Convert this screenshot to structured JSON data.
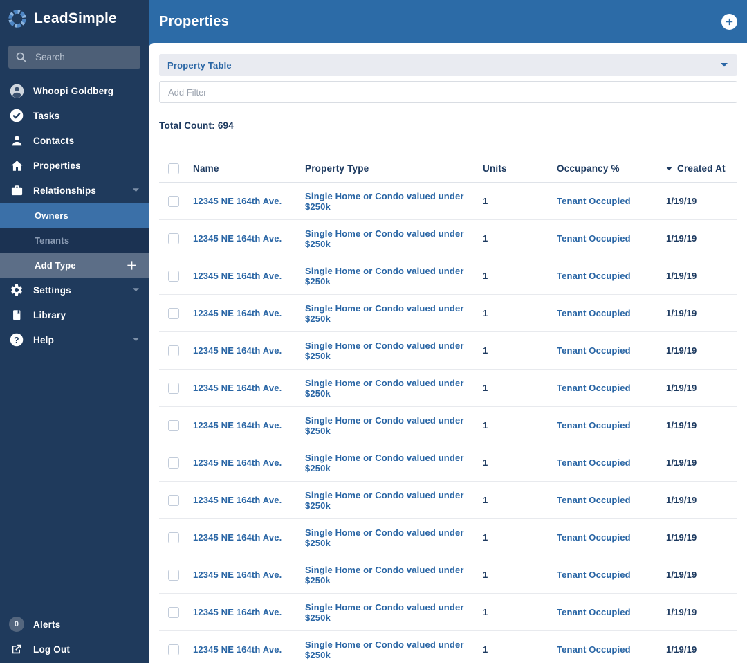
{
  "brand": {
    "name": "LeadSimple"
  },
  "sidebar": {
    "search": {
      "placeholder": "Search"
    },
    "nav_top": [
      {
        "label": "Whoopi Goldberg",
        "icon": "avatar-icon",
        "caret": false
      },
      {
        "label": "Tasks",
        "icon": "check-circle-icon",
        "caret": false
      },
      {
        "label": "Contacts",
        "icon": "person-icon",
        "caret": false
      },
      {
        "label": "Properties",
        "icon": "home-icon",
        "caret": false
      },
      {
        "label": "Relationships",
        "icon": "briefcase-icon",
        "caret": true
      }
    ],
    "nav_sub": [
      {
        "label": "Owners",
        "state": "active"
      },
      {
        "label": "Tenants",
        "state": "muted"
      },
      {
        "label": "Add Type",
        "state": "add",
        "trailing_icon": "plus-icon"
      }
    ],
    "nav_lower": [
      {
        "label": "Settings",
        "icon": "gear-icon",
        "caret": true
      },
      {
        "label": "Library",
        "icon": "book-icon",
        "caret": false
      },
      {
        "label": "Help",
        "icon": "help-icon",
        "caret": true
      }
    ],
    "alerts": {
      "label": "Alerts",
      "count": "0"
    },
    "logout": {
      "label": "Log Out"
    }
  },
  "header": {
    "title": "Properties"
  },
  "toolbar": {
    "view_name": "Property Table",
    "filter_placeholder": "Add Filter"
  },
  "table": {
    "total_count": "Total Count: 694",
    "columns": [
      "Name",
      "Property Type",
      "Units",
      "Occupancy %",
      "Created At"
    ],
    "sorted_by": "Created At",
    "sort_direction": "desc",
    "rows": [
      {
        "name": "12345 NE 164th Ave.",
        "property_type": "Single Home or Condo valued under $250k",
        "units": "1",
        "occupancy": "Tenant Occupied",
        "created_at": "1/19/19"
      },
      {
        "name": "12345 NE 164th Ave.",
        "property_type": "Single Home or Condo valued under $250k",
        "units": "1",
        "occupancy": "Tenant Occupied",
        "created_at": "1/19/19"
      },
      {
        "name": "12345 NE 164th Ave.",
        "property_type": "Single Home or Condo valued under $250k",
        "units": "1",
        "occupancy": "Tenant Occupied",
        "created_at": "1/19/19"
      },
      {
        "name": "12345 NE 164th Ave.",
        "property_type": "Single Home or Condo valued under $250k",
        "units": "1",
        "occupancy": "Tenant Occupied",
        "created_at": "1/19/19"
      },
      {
        "name": "12345 NE 164th Ave.",
        "property_type": "Single Home or Condo valued under $250k",
        "units": "1",
        "occupancy": "Tenant Occupied",
        "created_at": "1/19/19"
      },
      {
        "name": "12345 NE 164th Ave.",
        "property_type": "Single Home or Condo valued under $250k",
        "units": "1",
        "occupancy": "Tenant Occupied",
        "created_at": "1/19/19"
      },
      {
        "name": "12345 NE 164th Ave.",
        "property_type": "Single Home or Condo valued under $250k",
        "units": "1",
        "occupancy": "Tenant Occupied",
        "created_at": "1/19/19"
      },
      {
        "name": "12345 NE 164th Ave.",
        "property_type": "Single Home or Condo valued under $250k",
        "units": "1",
        "occupancy": "Tenant Occupied",
        "created_at": "1/19/19"
      },
      {
        "name": "12345 NE 164th Ave.",
        "property_type": "Single Home or Condo valued under $250k",
        "units": "1",
        "occupancy": "Tenant Occupied",
        "created_at": "1/19/19"
      },
      {
        "name": "12345 NE 164th Ave.",
        "property_type": "Single Home or Condo valued under $250k",
        "units": "1",
        "occupancy": "Tenant Occupied",
        "created_at": "1/19/19"
      },
      {
        "name": "12345 NE 164th Ave.",
        "property_type": "Single Home or Condo valued under $250k",
        "units": "1",
        "occupancy": "Tenant Occupied",
        "created_at": "1/19/19"
      },
      {
        "name": "12345 NE 164th Ave.",
        "property_type": "Single Home or Condo valued under $250k",
        "units": "1",
        "occupancy": "Tenant Occupied",
        "created_at": "1/19/19"
      },
      {
        "name": "12345 NE 164th Ave.",
        "property_type": "Single Home or Condo valued under $250k",
        "units": "1",
        "occupancy": "Tenant Occupied",
        "created_at": "1/19/19"
      }
    ]
  },
  "colors": {
    "sidebar_bg": "#1f3a5c",
    "header_bg": "#2c6ba7",
    "active_item_bg": "#3b70a8",
    "add_type_bg": "#5c6e87",
    "link_blue": "#2a66a5",
    "navy_text": "#1d3a60"
  }
}
